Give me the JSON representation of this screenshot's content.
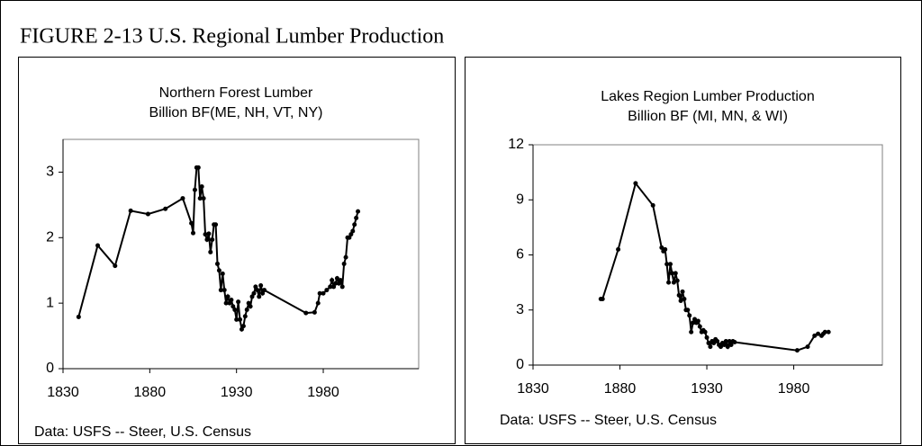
{
  "title": "FIGURE 2-13 U.S. Regional Lumber Production",
  "chart_data": [
    {
      "type": "line",
      "title": "Northern Forest Lumber",
      "subtitle": "Billion BF(ME, NH, VT, NY)",
      "source": "Data: USFS -- Steer, U.S. Census",
      "color": "#000000",
      "x": [
        1839,
        1850,
        1860,
        1869,
        1879,
        1889,
        1899,
        1904,
        1905,
        1906,
        1907,
        1908,
        1909,
        1910,
        1911,
        1912,
        1913,
        1914,
        1915,
        1916,
        1917,
        1918,
        1919,
        1920,
        1921,
        1922,
        1923,
        1924,
        1925,
        1926,
        1927,
        1928,
        1929,
        1930,
        1931,
        1932,
        1933,
        1934,
        1935,
        1936,
        1937,
        1938,
        1939,
        1940,
        1941,
        1942,
        1943,
        1944,
        1945,
        1946,
        1970,
        1975,
        1977,
        1978,
        1980,
        1982,
        1984,
        1985,
        1986,
        1987,
        1988,
        1989,
        1990,
        1991,
        1992,
        1993,
        1994,
        1995,
        1996,
        1997,
        1998,
        1999,
        2000
      ],
      "values": [
        0.79,
        1.88,
        1.57,
        2.41,
        2.36,
        2.44,
        2.6,
        2.22,
        2.07,
        2.73,
        3.07,
        3.07,
        2.6,
        2.78,
        2.6,
        2.05,
        1.97,
        2.06,
        1.78,
        1.97,
        2.2,
        2.2,
        1.6,
        1.5,
        1.2,
        1.45,
        1.2,
        1.0,
        1.1,
        1.0,
        1.05,
        0.95,
        0.9,
        0.75,
        1.02,
        0.75,
        0.6,
        0.65,
        0.8,
        0.9,
        1.0,
        0.95,
        1.1,
        1.15,
        1.25,
        1.2,
        1.1,
        1.27,
        1.15,
        1.2,
        0.85,
        0.86,
        1.0,
        1.15,
        1.15,
        1.2,
        1.25,
        1.35,
        1.25,
        1.3,
        1.38,
        1.3,
        1.35,
        1.25,
        1.6,
        1.7,
        2.0,
        2.0,
        2.05,
        2.1,
        2.2,
        2.3,
        2.4
      ],
      "xlim": [
        1830,
        2035
      ],
      "xticks": [
        1830,
        1880,
        1930,
        1980
      ],
      "ylim": [
        0,
        3.5
      ],
      "yticks": [
        0,
        1,
        2,
        3
      ]
    },
    {
      "type": "line",
      "title": "Lakes Region Lumber Production",
      "subtitle": "Billion BF (MI, MN, & WI)",
      "source": "Data: USFS -- Steer, U.S. Census",
      "color": "#000000",
      "x": [
        1869,
        1870,
        1879,
        1889,
        1899,
        1904,
        1905,
        1906,
        1907,
        1908,
        1909,
        1910,
        1911,
        1912,
        1913,
        1914,
        1915,
        1916,
        1917,
        1918,
        1919,
        1920,
        1921,
        1922,
        1923,
        1924,
        1925,
        1926,
        1927,
        1928,
        1929,
        1930,
        1931,
        1932,
        1933,
        1934,
        1935,
        1936,
        1937,
        1938,
        1939,
        1940,
        1941,
        1942,
        1943,
        1944,
        1945,
        1946,
        1982,
        1988,
        1992,
        1994,
        1996,
        1997,
        1998,
        2000
      ],
      "values": [
        3.6,
        3.6,
        6.3,
        9.9,
        8.7,
        6.4,
        6.2,
        6.3,
        5.5,
        4.5,
        5.5,
        5.0,
        4.5,
        5.0,
        4.6,
        3.8,
        3.5,
        4.0,
        3.6,
        3.0,
        3.0,
        2.7,
        1.8,
        2.3,
        2.5,
        2.3,
        2.4,
        2.1,
        1.8,
        1.9,
        1.8,
        1.5,
        1.2,
        1.0,
        1.3,
        1.2,
        1.4,
        1.3,
        1.1,
        1.0,
        1.2,
        1.1,
        1.3,
        1.0,
        1.3,
        1.1,
        1.3,
        1.25,
        0.8,
        1.0,
        1.6,
        1.7,
        1.6,
        1.7,
        1.8,
        1.8
      ],
      "xlim": [
        1830,
        2031
      ],
      "xticks": [
        1830,
        1880,
        1930,
        1980
      ],
      "ylim": [
        0,
        12
      ],
      "yticks": [
        0,
        3,
        6,
        9,
        12
      ]
    }
  ]
}
